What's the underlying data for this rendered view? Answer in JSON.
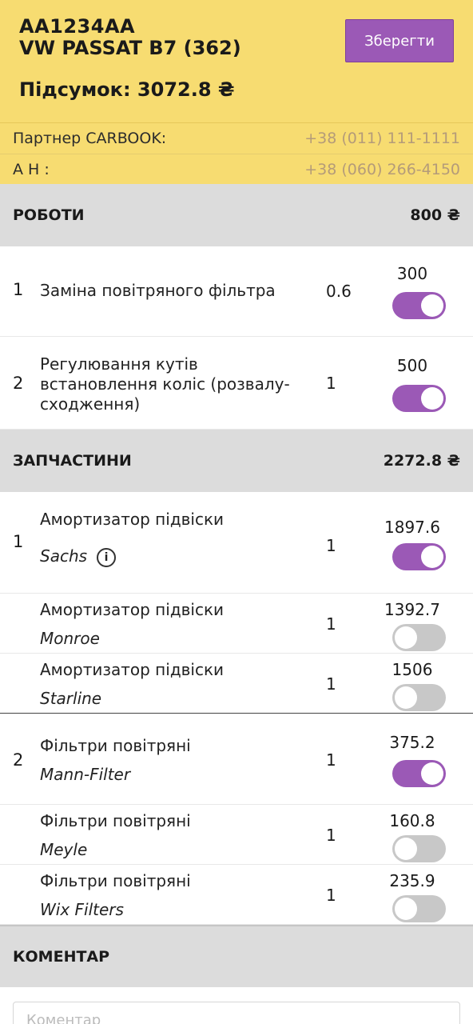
{
  "header": {
    "plate": "AA1234AA",
    "car": "VW PASSAT B7 (362)",
    "total_label": "Підсумок: 3072.8 ₴",
    "save_label": "Зберегти"
  },
  "contacts": [
    {
      "label": "Партнер CARBOOK:",
      "phone": "+38 (011) 111-1111"
    },
    {
      "label": "А Н :",
      "phone": "+38 (060) 266-4150"
    }
  ],
  "works": {
    "title": "РОБОТИ",
    "sum": "800 ₴",
    "items": [
      {
        "index": "1",
        "name": "Заміна повітряного фільтра",
        "qty": "0.6",
        "price": "300",
        "enabled": true
      },
      {
        "index": "2",
        "name": "Регулювання кутів встановлення коліс (розвалу-сходження)",
        "qty": "1",
        "price": "500",
        "enabled": true
      }
    ]
  },
  "parts": {
    "title": "ЗАПЧАСТИНИ",
    "sum": "2272.8 ₴",
    "groups": [
      {
        "index": "1",
        "options": [
          {
            "name": "Амортизатор підвіски",
            "brand": "Sachs",
            "qty": "1",
            "price": "1897.6",
            "enabled": true,
            "info": true
          },
          {
            "name": "Амортизатор підвіски",
            "brand": "Monroe",
            "qty": "1",
            "price": "1392.7",
            "enabled": false
          },
          {
            "name": "Амортизатор підвіски",
            "brand": "Starline",
            "qty": "1",
            "price": "1506",
            "enabled": false
          }
        ]
      },
      {
        "index": "2",
        "options": [
          {
            "name": "Фільтри повітряні",
            "brand": "Mann-Filter",
            "qty": "1",
            "price": "375.2",
            "enabled": true
          },
          {
            "name": "Фільтри повітряні",
            "brand": "Meyle",
            "qty": "1",
            "price": "160.8",
            "enabled": false
          },
          {
            "name": "Фільтри повітряні",
            "brand": "Wix Filters",
            "qty": "1",
            "price": "235.9",
            "enabled": false
          }
        ]
      }
    ]
  },
  "comment": {
    "title": "КОМЕНТАР",
    "placeholder": "Коментар"
  },
  "colors": {
    "header_bg": "#f7dc71",
    "accent": "#9b59b6",
    "section_bg": "#dcdcdc",
    "phone": "#b49b79"
  }
}
